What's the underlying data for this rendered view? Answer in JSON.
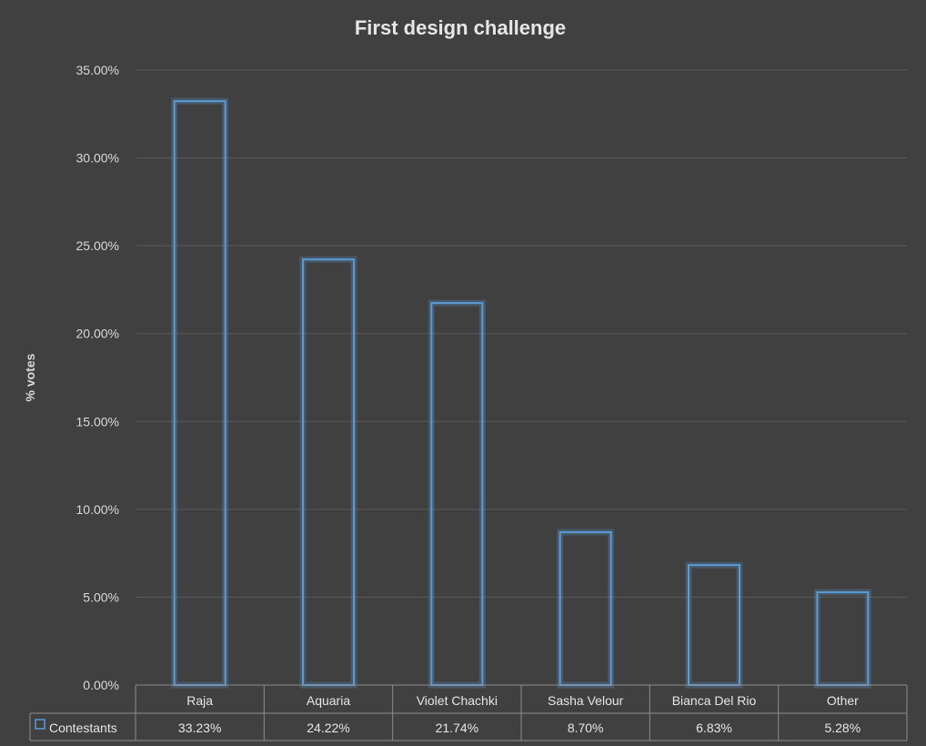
{
  "chart_data": {
    "type": "bar",
    "title": "First design challenge",
    "ylabel": "% votes",
    "xlabel": "",
    "categories": [
      "Raja",
      "Aquaria",
      "Violet Chachki",
      "Sasha Velour",
      "Bianca Del Rio",
      "Other"
    ],
    "series": [
      {
        "name": "Contestants",
        "values": [
          33.23,
          24.22,
          21.74,
          8.7,
          6.83,
          5.28
        ],
        "labels": [
          "33.23%",
          "24.22%",
          "21.74%",
          "8.70%",
          "6.83%",
          "5.28%"
        ],
        "color": "#5b9bd5"
      }
    ],
    "ylim": [
      0,
      35
    ],
    "yticks": [
      "0.00%",
      "5.00%",
      "10.00%",
      "15.00%",
      "20.00%",
      "25.00%",
      "30.00%",
      "35.00%"
    ],
    "ytick_values": [
      0,
      5,
      10,
      15,
      20,
      25,
      30,
      35
    ],
    "grid": true,
    "legend": "data-table"
  }
}
